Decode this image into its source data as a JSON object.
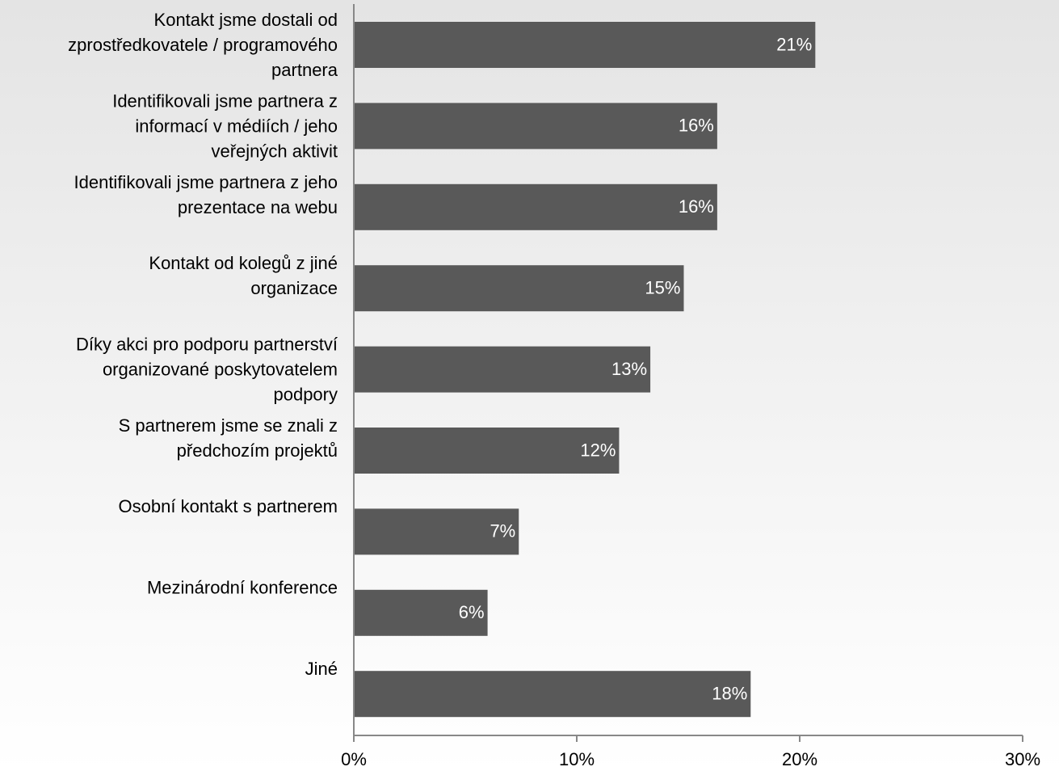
{
  "chart_data": {
    "type": "bar",
    "orientation": "horizontal",
    "categories": [
      "Kontakt jsme dostali od\nzprostředkovatele / programového\npartnera",
      "Identifikovali jsme partnera z\ninformací v médiích / jeho\nveřejných aktivit",
      "Identifikovali jsme partnera z jeho\nprezentace na webu",
      "Kontakt od kolegů z jiné\norganizace",
      "Díky akci pro podporu partnerství\norganizované poskytovatelem\npodpory",
      "S partnerem jsme se znali z\npředchozím projektů",
      "Osobní kontakt s partnerem",
      "Mezinárodní konference",
      "Jiné"
    ],
    "values": [
      20.7,
      16.3,
      16.3,
      14.8,
      13.3,
      11.9,
      7.4,
      6.0,
      17.8
    ],
    "value_labels": [
      "21%",
      "16%",
      "16%",
      "15%",
      "13%",
      "12%",
      "7%",
      "6%",
      "18%"
    ],
    "color": "#595959",
    "xlim": [
      0,
      30
    ],
    "xticks": [
      {
        "value": 0,
        "label": "0%"
      },
      {
        "value": 10,
        "label": "10%"
      },
      {
        "value": 20,
        "label": "20%"
      },
      {
        "value": 30,
        "label": "30%"
      }
    ]
  }
}
